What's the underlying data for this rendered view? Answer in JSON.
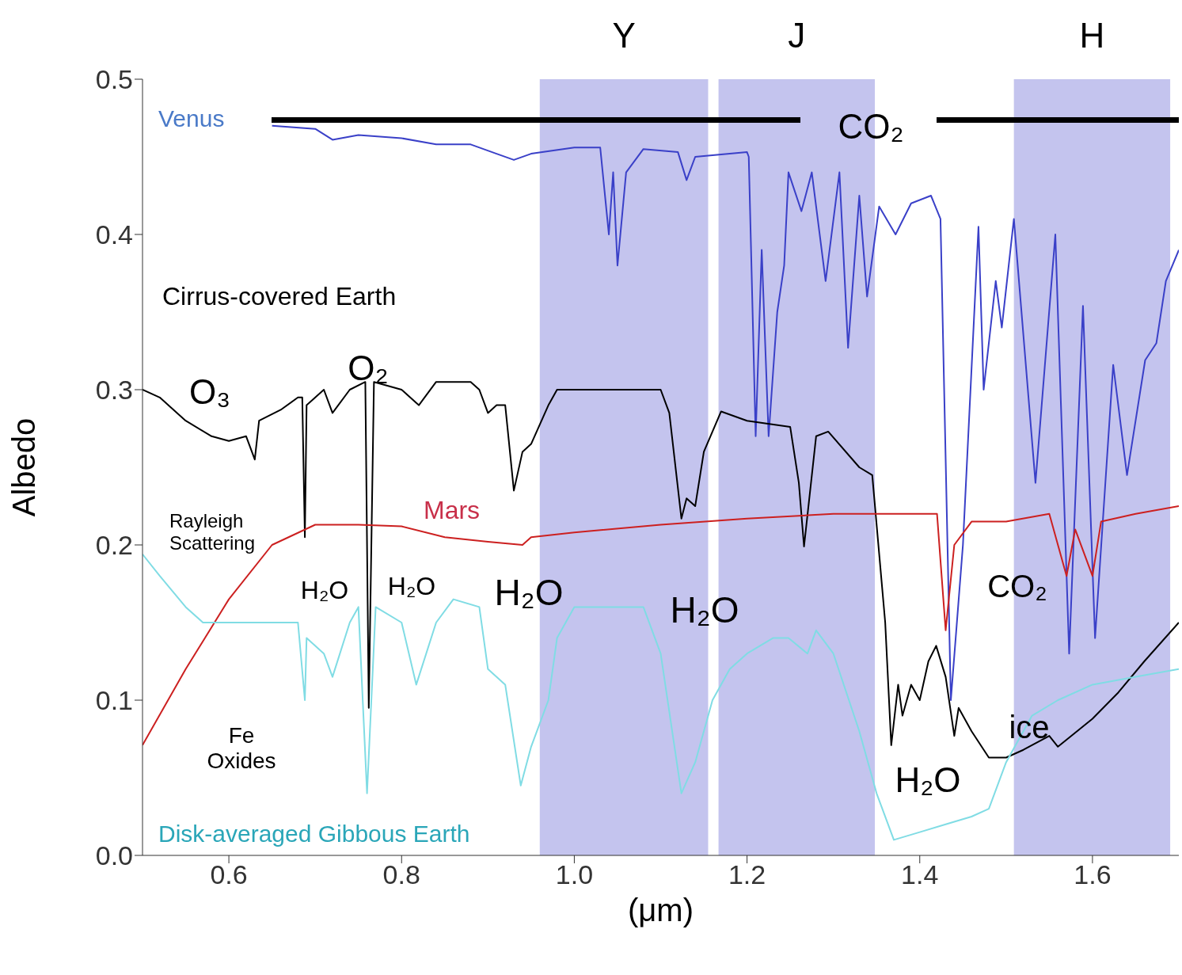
{
  "chart_data": {
    "type": "line",
    "xlabel": "(μm)",
    "ylabel": "Albedo",
    "xlim": [
      0.5,
      1.7
    ],
    "ylim": [
      0,
      0.5
    ],
    "xticks": [
      0.6,
      0.8,
      {
        "value": 1.0,
        "label": "1.0"
      },
      1.2,
      1.4,
      1.6
    ],
    "yticks": [
      {
        "value": 0,
        "label": "0.0"
      },
      {
        "value": 0.1,
        "label": "0.1"
      },
      {
        "value": 0.2,
        "label": "0.2"
      },
      {
        "value": 0.3,
        "label": "0.3"
      },
      {
        "value": 0.4,
        "label": "0.4"
      },
      {
        "value": 0.5,
        "label": "0.5"
      }
    ],
    "grid": false,
    "legend": false,
    "marker": "none",
    "line_style": "solid",
    "bands": [
      {
        "axis": "x",
        "from": 0.96,
        "to": 1.155,
        "label": "Y",
        "color": "#c4c4ee"
      },
      {
        "axis": "x",
        "from": 1.167,
        "to": 1.348,
        "label": "J",
        "color": "#c4c4ee"
      },
      {
        "axis": "x",
        "from": 1.509,
        "to": 1.69,
        "label": "H",
        "color": "#c4c4ee"
      }
    ],
    "series": [
      {
        "name": "Venus",
        "color": "#3a40c8",
        "x": [
          0.65,
          0.7,
          0.72,
          0.75,
          0.8,
          0.84,
          0.88,
          0.91,
          0.93,
          0.95,
          1.0,
          1.03,
          1.04,
          1.045,
          1.05,
          1.06,
          1.08,
          1.12,
          1.13,
          1.14,
          1.2,
          1.202,
          1.21,
          1.217,
          1.225,
          1.235,
          1.243,
          1.248,
          1.263,
          1.275,
          1.291,
          1.307,
          1.317,
          1.33,
          1.339,
          1.353,
          1.372,
          1.39,
          1.413,
          1.424,
          1.436,
          1.45,
          1.468,
          1.474,
          1.488,
          1.495,
          1.509,
          1.534,
          1.557,
          1.573,
          1.589,
          1.603,
          1.624,
          1.64,
          1.661,
          1.674,
          1.685,
          1.7
        ],
        "values": [
          0.47,
          0.468,
          0.461,
          0.464,
          0.462,
          0.458,
          0.458,
          0.452,
          0.448,
          0.452,
          0.456,
          0.456,
          0.4,
          0.44,
          0.38,
          0.44,
          0.455,
          0.453,
          0.435,
          0.45,
          0.453,
          0.45,
          0.27,
          0.39,
          0.27,
          0.35,
          0.38,
          0.44,
          0.415,
          0.44,
          0.37,
          0.44,
          0.327,
          0.425,
          0.36,
          0.418,
          0.4,
          0.42,
          0.425,
          0.41,
          0.1,
          0.2,
          0.405,
          0.3,
          0.37,
          0.34,
          0.41,
          0.24,
          0.4,
          0.13,
          0.354,
          0.14,
          0.316,
          0.245,
          0.319,
          0.33,
          0.37,
          0.39
        ]
      },
      {
        "name": "Cirrus-covered Earth",
        "color": "#000000",
        "x": [
          0.5,
          0.52,
          0.55,
          0.58,
          0.6,
          0.62,
          0.63,
          0.635,
          0.66,
          0.68,
          0.685,
          0.688,
          0.69,
          0.71,
          0.72,
          0.74,
          0.758,
          0.762,
          0.768,
          0.8,
          0.82,
          0.84,
          0.88,
          0.89,
          0.9,
          0.91,
          0.92,
          0.93,
          0.94,
          0.95,
          0.97,
          0.98,
          1.0,
          1.1,
          1.11,
          1.124,
          1.13,
          1.14,
          1.15,
          1.17,
          1.2,
          1.25,
          1.26,
          1.266,
          1.28,
          1.294,
          1.33,
          1.345,
          1.36,
          1.367,
          1.375,
          1.38,
          1.39,
          1.4,
          1.41,
          1.419,
          1.43,
          1.44,
          1.445,
          1.46,
          1.48,
          1.5,
          1.52,
          1.55,
          1.56,
          1.6,
          1.63,
          1.66,
          1.7
        ],
        "values": [
          0.3,
          0.295,
          0.28,
          0.27,
          0.267,
          0.27,
          0.255,
          0.28,
          0.287,
          0.295,
          0.295,
          0.205,
          0.29,
          0.3,
          0.285,
          0.3,
          0.305,
          0.095,
          0.305,
          0.3,
          0.29,
          0.305,
          0.305,
          0.3,
          0.285,
          0.29,
          0.29,
          0.235,
          0.26,
          0.265,
          0.29,
          0.3,
          0.3,
          0.3,
          0.285,
          0.217,
          0.23,
          0.225,
          0.26,
          0.286,
          0.28,
          0.276,
          0.24,
          0.199,
          0.27,
          0.273,
          0.25,
          0.245,
          0.15,
          0.071,
          0.11,
          0.09,
          0.11,
          0.1,
          0.125,
          0.135,
          0.115,
          0.077,
          0.095,
          0.08,
          0.063,
          0.063,
          0.068,
          0.077,
          0.07,
          0.088,
          0.105,
          0.125,
          0.15
        ]
      },
      {
        "name": "Mars",
        "color": "#cc2020",
        "x": [
          0.5,
          0.55,
          0.6,
          0.65,
          0.7,
          0.75,
          0.8,
          0.85,
          0.9,
          0.94,
          0.95,
          1.0,
          1.1,
          1.2,
          1.3,
          1.35,
          1.4,
          1.42,
          1.43,
          1.44,
          1.46,
          1.5,
          1.55,
          1.57,
          1.58,
          1.6,
          1.61,
          1.65,
          1.7
        ],
        "values": [
          0.071,
          0.12,
          0.165,
          0.2,
          0.213,
          0.213,
          0.212,
          0.205,
          0.202,
          0.2,
          0.205,
          0.208,
          0.213,
          0.217,
          0.22,
          0.22,
          0.22,
          0.22,
          0.145,
          0.2,
          0.215,
          0.215,
          0.22,
          0.18,
          0.21,
          0.18,
          0.215,
          0.22,
          0.225
        ]
      },
      {
        "name": "Disk-averaged Gibbous Earth",
        "color": "#80dce4",
        "x": [
          0.5,
          0.52,
          0.55,
          0.57,
          0.6,
          0.65,
          0.68,
          0.688,
          0.69,
          0.71,
          0.72,
          0.74,
          0.75,
          0.76,
          0.77,
          0.8,
          0.817,
          0.84,
          0.86,
          0.89,
          0.9,
          0.92,
          0.938,
          0.95,
          0.97,
          0.98,
          1.0,
          1.05,
          1.08,
          1.1,
          1.124,
          1.14,
          1.16,
          1.18,
          1.2,
          1.23,
          1.248,
          1.27,
          1.28,
          1.3,
          1.33,
          1.35,
          1.37,
          1.4,
          1.43,
          1.46,
          1.48,
          1.5,
          1.53,
          1.56,
          1.6,
          1.65,
          1.7
        ],
        "values": [
          0.194,
          0.18,
          0.16,
          0.15,
          0.15,
          0.15,
          0.15,
          0.1,
          0.14,
          0.13,
          0.115,
          0.15,
          0.16,
          0.04,
          0.16,
          0.15,
          0.11,
          0.15,
          0.165,
          0.16,
          0.12,
          0.11,
          0.045,
          0.07,
          0.1,
          0.14,
          0.16,
          0.16,
          0.16,
          0.13,
          0.04,
          0.06,
          0.1,
          0.12,
          0.13,
          0.14,
          0.14,
          0.13,
          0.145,
          0.13,
          0.08,
          0.04,
          0.01,
          0.015,
          0.02,
          0.025,
          0.03,
          0.06,
          0.09,
          0.1,
          0.11,
          0.115,
          0.12
        ]
      }
    ],
    "annotations": [
      "O₃",
      "O₂",
      "Rayleigh\nScattering",
      "H₂O",
      "H₂O",
      "H₂O",
      "H₂O",
      "CO₂",
      "CO₂",
      "ice",
      "H₂O",
      "Fe\nOxides"
    ]
  }
}
